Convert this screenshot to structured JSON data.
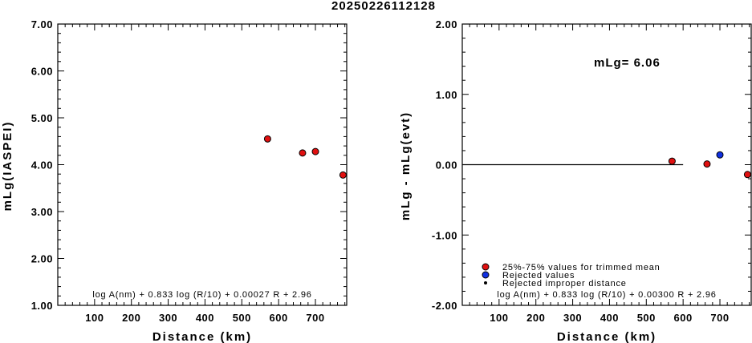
{
  "title": "20250226112128",
  "chart_data": [
    {
      "type": "scatter",
      "xlabel": "Distance (km)",
      "ylabel": "mLg(IASPEI)",
      "xlim": [
        0,
        785
      ],
      "ylim": [
        1.0,
        7.0
      ],
      "xticks": [
        100,
        200,
        300,
        400,
        500,
        600,
        700
      ],
      "yticks": [
        1.0,
        2.0,
        3.0,
        4.0,
        5.0,
        6.0,
        7.0
      ],
      "ytick_labels": [
        "1.00",
        "2.00",
        "3.00",
        "4.00",
        "5.00",
        "6.00",
        "7.00"
      ],
      "formula": "log A(nm) + 0.833 log (R/10) + 0.00027 R + 2.96",
      "series": [
        {
          "color": "#e01010",
          "points": [
            {
              "x": 570,
              "y": 4.55
            },
            {
              "x": 665,
              "y": 4.25
            },
            {
              "x": 700,
              "y": 4.28
            },
            {
              "x": 775,
              "y": 3.78
            }
          ]
        }
      ]
    },
    {
      "type": "scatter",
      "xlabel": "Distance (km)",
      "ylabel": "mLg - mLg(evt)",
      "xlim": [
        0,
        785
      ],
      "ylim": [
        -2.0,
        2.0
      ],
      "xticks": [
        100,
        200,
        300,
        400,
        500,
        600,
        700
      ],
      "yticks": [
        -2.0,
        -1.0,
        0.0,
        1.0,
        2.0
      ],
      "ytick_labels": [
        "-2.00",
        "-1.00",
        "0.00",
        "1.00",
        "2.00"
      ],
      "annotation": "mLg= 6.06",
      "formula": "log A(nm) + 0.833 log (R/10) + 0.00300 R + 2.96",
      "reference_line": {
        "y": 0.0,
        "x_from": 0,
        "x_to": 600
      },
      "series": [
        {
          "name": "25%-75% values for trimmed mean",
          "color": "#e01010",
          "points": [
            {
              "x": 570,
              "y": 0.05
            },
            {
              "x": 665,
              "y": 0.01
            },
            {
              "x": 775,
              "y": -0.14
            }
          ]
        },
        {
          "name": "Rejected values",
          "color": "#1030e0",
          "points": [
            {
              "x": 700,
              "y": 0.14
            }
          ]
        },
        {
          "name": "Rejected improper distance",
          "color": "#000000",
          "points": []
        }
      ]
    }
  ]
}
